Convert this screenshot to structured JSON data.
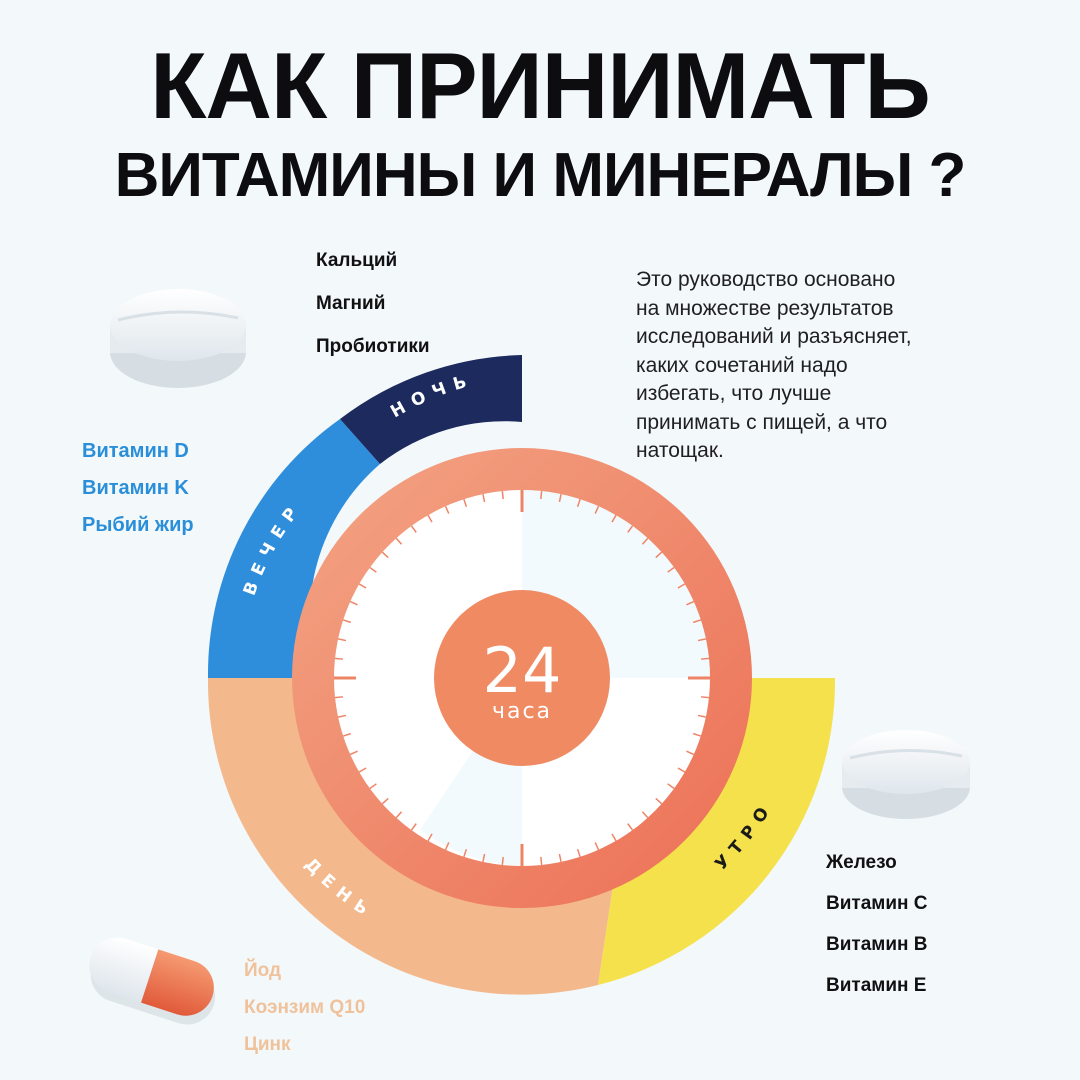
{
  "title": {
    "line1": "КАК ПРИНИМАТЬ",
    "line2": "ВИТАМИНЫ И МИНЕРАЛЫ ?"
  },
  "description": [
    "Это руководство основано",
    "на множестве результатов",
    "исследований и разъясняет,",
    "каких сочетаний надо",
    "избегать, что лучше",
    "принимать с пищей, а что",
    "натощак."
  ],
  "clock": {
    "number": "24",
    "unit": "часа"
  },
  "segments": {
    "night": {
      "label": "НОЧЬ",
      "color": "#1c2a5e",
      "items": [
        "Кальций",
        "Магний",
        "Пробиотики"
      ]
    },
    "evening": {
      "label": "ВЕЧЕР",
      "color": "#2f8edc",
      "items": [
        "Витамин D",
        "Витамин K",
        "Рыбий жир"
      ]
    },
    "morning": {
      "label": "УТРО",
      "color": "#f4e14c",
      "items": [
        "Железо",
        "Витамин C",
        "Витамин B",
        "Витамин E"
      ]
    },
    "day": {
      "label": "ДЕНЬ",
      "color": "#f3b98c",
      "items": [
        "Йод",
        "Коэнзим Q10",
        "Цинк"
      ]
    }
  },
  "colors": {
    "ring_inner": "#ee7a5e",
    "ring_outer": "#f3a27e",
    "background": "#f3f8fb"
  }
}
